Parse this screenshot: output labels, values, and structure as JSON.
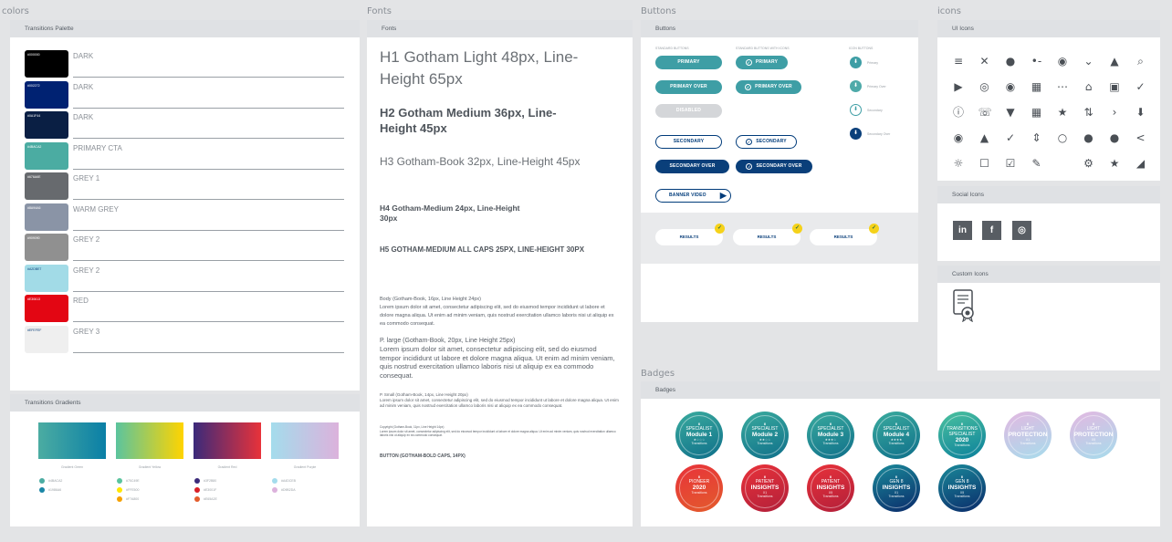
{
  "sections": {
    "colors": "colors",
    "fonts": "Fonts",
    "buttons": "Buttons",
    "icons": "icons",
    "badges": "Badges"
  },
  "colors_panel": {
    "header": "Transitions Palette",
    "swatches": [
      {
        "code": "#000000",
        "name": "DARK",
        "color": "#000000"
      },
      {
        "code": "#002272",
        "name": "DARK",
        "color": "#002272"
      },
      {
        "code": "#0A1F44",
        "name": "DARK",
        "color": "#0a1f44"
      },
      {
        "code": "#4BACA2",
        "name": "PRIMARY CTA",
        "color": "#4baca2"
      },
      {
        "code": "#676A6E",
        "name": "GREY 1",
        "color": "#676a6e"
      },
      {
        "code": "#8A94A6",
        "name": "WARM GREY",
        "color": "#8a94a6"
      },
      {
        "code": "#909090",
        "name": "GREY 2",
        "color": "#909090"
      },
      {
        "code": "#A2DBE7",
        "name": "GREY 2",
        "color": "#a2dbe7"
      },
      {
        "code": "#E30613",
        "name": "RED",
        "color": "#e30613"
      },
      {
        "code": "#EFEFEF",
        "name": "GREY 3",
        "color": "#efefef"
      }
    ],
    "gradients_header": "Transitions Gradients",
    "gradients": [
      {
        "label": "Gradient Green",
        "from": "#4baca2",
        "to": "#0a7fa6",
        "stops": [
          {
            "c": "#4baca2",
            "t": "#4BACA2"
          },
          {
            "c": "#1a86a6",
            "t": "#1986A6"
          }
        ]
      },
      {
        "label": "Gradient Yellow",
        "from": "#5bc49e",
        "to": "#ffd400",
        "stops": [
          {
            "c": "#5bc49e",
            "t": "#75C49E"
          },
          {
            "c": "#ffe600",
            "t": "#FFE500"
          },
          {
            "c": "#f5a100",
            "t": "#F7A800"
          }
        ]
      },
      {
        "label": "Gradient Red",
        "from": "#3b2a7a",
        "to": "#e8323a",
        "stops": [
          {
            "c": "#3b2a7a",
            "t": "#3F2B80"
          },
          {
            "c": "#d81f26",
            "t": "#E3001F"
          },
          {
            "c": "#e35c2c",
            "t": "#E65A2E"
          }
        ]
      },
      {
        "label": "Gradient Purple",
        "from": "#a4dcec",
        "to": "#dcb2dc",
        "stops": [
          {
            "c": "#a4dcec",
            "t": "#A4DCEB"
          },
          {
            "c": "#dcb2dc",
            "t": "#D9B2DA"
          }
        ]
      }
    ]
  },
  "fonts_panel": {
    "header": "Fonts",
    "h1": "H1 Gotham Light 48px, Line-Height 65px",
    "h2": "H2 Gotham Medium 36px, Line-Height 45px",
    "h3": "H3 Gotham-Book 32px, Line-Height 45px",
    "h4": "H4 Gotham-Medium 24px, Line-Height 30px",
    "h5": "H5 GOTHAM-MEDIUM ALL CAPS 25PX, LINE-HEIGHT 30PX",
    "body_title": "Body (Gotham-Book, 16px, Line Height 24px)",
    "body_text": "Lorem ipsum dolor sit amet, consectetur adipiscing elit, sed do eiusmod tempor incididunt ut labore et dolore magna aliqua. Ut enim ad minim veniam, quis nostrud exercitation ullamco laboris nisi ut aliquip ex ea commodo consequat.",
    "large_title": "P. large (Gotham-Book, 20px, Line Height 25px)",
    "large_text": "Lorem ipsum dolor sit amet, consectetur adipiscing elit, sed do eiusmod tempor incididunt ut labore et dolore magna aliqua. Ut enim ad minim veniam, quis nostrud exercitation ullamco laboris nisi ut aliquip ex ea commodo consequat.",
    "small_title": "P. Small (Gotham-Book, 14px, Line Height 20px)",
    "small_text": "Lorem ipsum dolor sit amet, consectetur adipiscing elit, sed do eiusmod tempor incididunt ut labore et dolore magna aliqua. Ut enim ad minim veniam, quis nostrud exercitation ullamco laboris nisi ut aliquip ex ea commodo consequat.",
    "copy_title": "Copyright (Gotham-Book, 11px, Line Height 14px)",
    "copy_text": "Lorem ipsum dolor sit amet, consectetur adipiscing elit, sed do eiusmod tempor incididunt ut labore et dolore magna aliqua. Ut enim ad minim veniam, quis nostrud exercitation ullamco laboris nisi ut aliquip ex ea commodo consequat.",
    "button_style": "BUTTON (GOTHAM-BOLD CAPS, 14PX)"
  },
  "buttons_panel": {
    "header": "Buttons",
    "col1": "STANDARD BUTTONS",
    "col2": "STANDARD BUTTONS WITH ICONS",
    "col3": "ICON BUTTONS",
    "primary": "PRIMARY",
    "primary_over": "PRIMARY OVER",
    "disabled": "DISABLED",
    "secondary": "SECONDARY",
    "secondary_over": "SECONDARY OVER",
    "banner_video": "BANNER VIDEO",
    "icon_labels": [
      "Primary",
      "Primary Over",
      "Secondary",
      "Secondary Over"
    ],
    "results": [
      "RESULTS",
      "RESULTS",
      "RESULTS"
    ]
  },
  "icons_panel": {
    "header": "UI Icons",
    "rows": [
      [
        "≡",
        "✕",
        "●",
        "•-",
        "◉",
        "⌄",
        "▲",
        "⌕"
      ],
      [
        "▶",
        "◎",
        "◉",
        "▦",
        "⋯",
        "⌂",
        "▣",
        "✓"
      ],
      [
        "ⓘ",
        "☏",
        "▼",
        "▦",
        "★",
        "⇅",
        "›",
        "⬇"
      ],
      [
        "◉",
        "▲",
        "✓",
        "⇕",
        "○",
        "●",
        "●",
        "<"
      ],
      [
        "☼",
        "☐",
        "☑",
        "✎",
        "",
        "⚙",
        "★",
        "◢"
      ]
    ],
    "social_header": "Social Icons",
    "social": [
      "in",
      "f",
      "◎"
    ],
    "custom_header": "Custom Icons"
  },
  "badges_panel": {
    "header": "Badges",
    "items": [
      {
        "t1": "SPECIALIST",
        "t2": "Module 1",
        "stars": "★☆☆☆",
        "c1": "#3aab9e",
        "c2": "#0f6f8a"
      },
      {
        "t1": "SPECIALIST",
        "t2": "Module 2",
        "stars": "★★☆☆",
        "c1": "#3aab9e",
        "c2": "#0f6f8a"
      },
      {
        "t1": "SPECIALIST",
        "t2": "Module 3",
        "stars": "★★★☆",
        "c1": "#3aab9e",
        "c2": "#0f6f8a"
      },
      {
        "t1": "SPECIALIST",
        "t2": "Module 4",
        "stars": "★★★★",
        "c1": "#3aab9e",
        "c2": "#0f6f8a"
      },
      {
        "t1": "TRANSITIONS SPECIALIST",
        "t2": "2020",
        "stars": "",
        "c1": "#4cc29e",
        "c2": "#0a7f9c"
      },
      {
        "t1": "LIGHT",
        "t2": "PROTECTION",
        "stars": "X1",
        "c1": "#e3b8e1",
        "c2": "#a6dcec"
      },
      {
        "t1": "LIGHT",
        "t2": "PROTECTION",
        "stars": "X5",
        "c1": "#e3b8e1",
        "c2": "#a6dcec"
      },
      {
        "t1": "PIONEER",
        "t2": "2020",
        "stars": "",
        "c1": "#e8323a",
        "c2": "#e35c2c"
      },
      {
        "t1": "PATIENT",
        "t2": "INSIGHTS",
        "stars": "X1",
        "c1": "#e8323a",
        "c2": "#b21f3a"
      },
      {
        "t1": "PATIENT",
        "t2": "INSIGHTS",
        "stars": "X5",
        "c1": "#e8323a",
        "c2": "#b21f3a"
      },
      {
        "t1": "GEN 8",
        "t2": "INSIGHTS",
        "stars": "X1",
        "c1": "#1a8a9a",
        "c2": "#0a2a6a"
      },
      {
        "t1": "GEN 8",
        "t2": "INSIGHTS",
        "stars": "X5",
        "c1": "#1a8a9a",
        "c2": "#0a2a6a"
      }
    ],
    "brand": "Transitions"
  }
}
